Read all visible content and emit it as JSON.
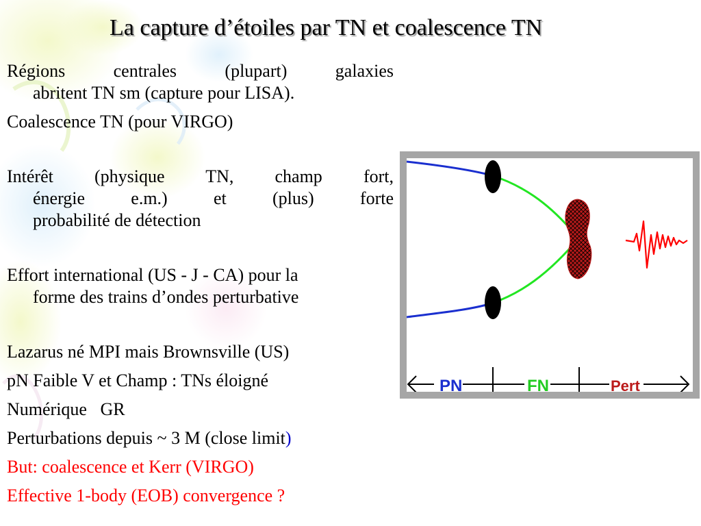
{
  "slide": {
    "title": "La capture d’étoiles par TN et coalescence TN",
    "paragraphs": [
      {
        "line1": "Régions centrales (plupart) galaxies",
        "line2": "abritent TN sm (capture pour LISA)."
      },
      {
        "text": "Coalescence TN (pour VIRGO)"
      },
      {
        "line1": "Intérêt (physique TN, champ fort,",
        "line2": "énergie e.m.) et (plus) forte",
        "line3": "probabilité de détection"
      },
      {
        "line1": "Effort international (US - J - CA) pour la",
        "line2": "forme des trains d’ondes perturbative"
      },
      {
        "text": "Lazarus né MPI mais Brownsville (US)"
      },
      {
        "text": "pN Faible V et Champ : TNs éloigné"
      },
      {
        "text": "Numérique   GR"
      },
      {
        "text_before": "Perturbations depuis ~ 3 M (close limit",
        "paren": ")"
      },
      {
        "text": "But: coalescence et Kerr (VIRGO)"
      },
      {
        "text": "Effective 1-body (EOB) convergence ?"
      }
    ]
  },
  "diagram": {
    "labels": {
      "pn": "PN",
      "fn": "FN",
      "pert": "Pert"
    },
    "colors": {
      "frame": "#a6a6a6",
      "pn_orbit": "#1a2fcf",
      "fn_orbit": "#22e622",
      "black_hole": "#000000",
      "merger": "#bb1a1a",
      "waveform": "#ff0000",
      "pn_label": "#1a2fcf",
      "fn_label": "#22cc22",
      "pert_label": "#bb1a1a"
    }
  }
}
